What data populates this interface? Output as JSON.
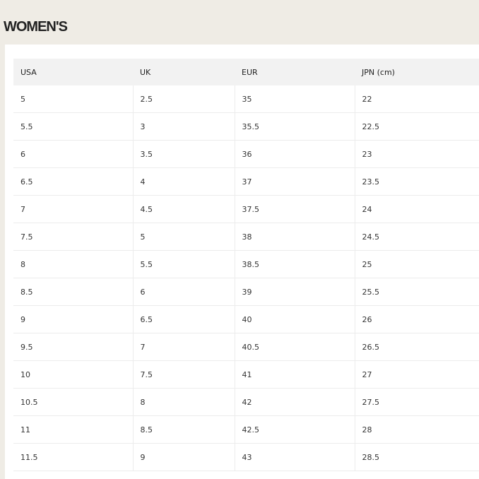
{
  "title": "WOMEN'S",
  "table": {
    "headers": [
      "USA",
      "UK",
      "EUR",
      "JPN (cm)"
    ],
    "rows": [
      [
        "5",
        "2.5",
        "35",
        "22"
      ],
      [
        "5.5",
        "3",
        "35.5",
        "22.5"
      ],
      [
        "6",
        "3.5",
        "36",
        "23"
      ],
      [
        "6.5",
        "4",
        "37",
        "23.5"
      ],
      [
        "7",
        "4.5",
        "37.5",
        "24"
      ],
      [
        "7.5",
        "5",
        "38",
        "24.5"
      ],
      [
        "8",
        "5.5",
        "38.5",
        "25"
      ],
      [
        "8.5",
        "6",
        "39",
        "25.5"
      ],
      [
        "9",
        "6.5",
        "40",
        "26"
      ],
      [
        "9.5",
        "7",
        "40.5",
        "26.5"
      ],
      [
        "10",
        "7.5",
        "41",
        "27"
      ],
      [
        "10.5",
        "8",
        "42",
        "27.5"
      ],
      [
        "11",
        "8.5",
        "42.5",
        "28"
      ],
      [
        "11.5",
        "9",
        "43",
        "28.5"
      ]
    ]
  }
}
